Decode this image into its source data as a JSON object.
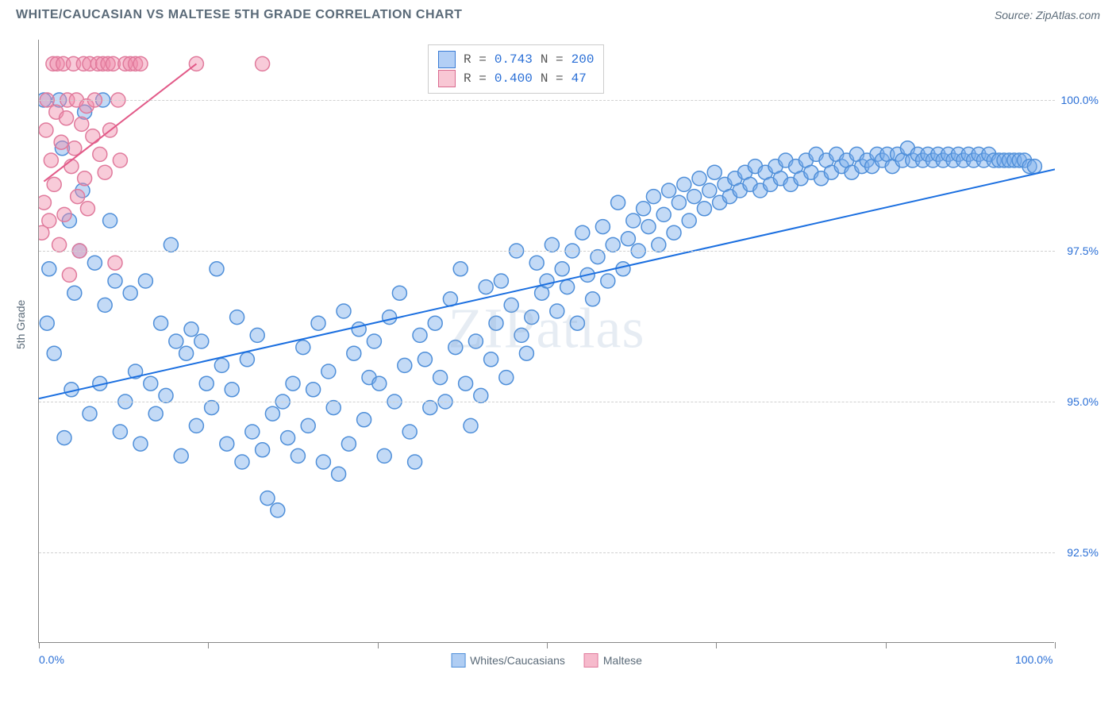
{
  "title": "WHITE/CAUCASIAN VS MALTESE 5TH GRADE CORRELATION CHART",
  "source_label": "Source: ZipAtlas.com",
  "y_axis_label": "5th Grade",
  "watermark": "ZIPatlas",
  "chart": {
    "type": "scatter",
    "xlim": [
      0,
      100
    ],
    "ylim": [
      91.0,
      101.0
    ],
    "gridlines_y": [
      92.5,
      95.0,
      97.5,
      100.0
    ],
    "y_tick_labels": [
      "92.5%",
      "95.0%",
      "97.5%",
      "100.0%"
    ],
    "x_ticks": [
      0,
      16.67,
      33.33,
      50.0,
      66.67,
      83.33,
      100.0
    ],
    "x_tick_labels": {
      "0": "0.0%",
      "100": "100.0%"
    },
    "background_color": "#ffffff",
    "grid_color": "#d0d0d0",
    "axis_color": "#888888",
    "marker_radius": 9,
    "marker_stroke_width": 1.5,
    "trend_line_width": 2,
    "series": [
      {
        "name": "Whites/Caucasians",
        "fill_color": "rgba(122,172,235,0.45)",
        "stroke_color": "#4f8fd9",
        "trend_color": "#1b6fe0",
        "R": "0.743",
        "N": "200",
        "trend": {
          "x1": 0,
          "y1": 95.05,
          "x2": 100,
          "y2": 98.85
        },
        "points": [
          [
            0.5,
            100.0
          ],
          [
            0.8,
            96.3
          ],
          [
            1.0,
            97.2
          ],
          [
            1.5,
            95.8
          ],
          [
            2.0,
            100.0
          ],
          [
            2.3,
            99.2
          ],
          [
            2.5,
            94.4
          ],
          [
            3.0,
            98.0
          ],
          [
            3.2,
            95.2
          ],
          [
            3.5,
            96.8
          ],
          [
            4.0,
            97.5
          ],
          [
            4.3,
            98.5
          ],
          [
            4.5,
            99.8
          ],
          [
            5.0,
            94.8
          ],
          [
            5.5,
            97.3
          ],
          [
            6.0,
            95.3
          ],
          [
            6.3,
            100.0
          ],
          [
            6.5,
            96.6
          ],
          [
            7.0,
            98.0
          ],
          [
            7.5,
            97.0
          ],
          [
            8.0,
            94.5
          ],
          [
            8.5,
            95.0
          ],
          [
            9.0,
            96.8
          ],
          [
            9.5,
            95.5
          ],
          [
            10.0,
            94.3
          ],
          [
            10.5,
            97.0
          ],
          [
            11.0,
            95.3
          ],
          [
            11.5,
            94.8
          ],
          [
            12.0,
            96.3
          ],
          [
            12.5,
            95.1
          ],
          [
            13.0,
            97.6
          ],
          [
            13.5,
            96.0
          ],
          [
            14.0,
            94.1
          ],
          [
            14.5,
            95.8
          ],
          [
            15.0,
            96.2
          ],
          [
            15.5,
            94.6
          ],
          [
            16.0,
            96.0
          ],
          [
            16.5,
            95.3
          ],
          [
            17.0,
            94.9
          ],
          [
            17.5,
            97.2
          ],
          [
            18.0,
            95.6
          ],
          [
            18.5,
            94.3
          ],
          [
            19.0,
            95.2
          ],
          [
            19.5,
            96.4
          ],
          [
            20.0,
            94.0
          ],
          [
            20.5,
            95.7
          ],
          [
            21.0,
            94.5
          ],
          [
            21.5,
            96.1
          ],
          [
            22.0,
            94.2
          ],
          [
            22.5,
            93.4
          ],
          [
            23.0,
            94.8
          ],
          [
            23.5,
            93.2
          ],
          [
            24.0,
            95.0
          ],
          [
            24.5,
            94.4
          ],
          [
            25.0,
            95.3
          ],
          [
            25.5,
            94.1
          ],
          [
            26.0,
            95.9
          ],
          [
            26.5,
            94.6
          ],
          [
            27.0,
            95.2
          ],
          [
            27.5,
            96.3
          ],
          [
            28.0,
            94.0
          ],
          [
            28.5,
            95.5
          ],
          [
            29.0,
            94.9
          ],
          [
            29.5,
            93.8
          ],
          [
            30.0,
            96.5
          ],
          [
            30.5,
            94.3
          ],
          [
            31.0,
            95.8
          ],
          [
            31.5,
            96.2
          ],
          [
            32.0,
            94.7
          ],
          [
            32.5,
            95.4
          ],
          [
            33.0,
            96.0
          ],
          [
            33.5,
            95.3
          ],
          [
            34.0,
            94.1
          ],
          [
            34.5,
            96.4
          ],
          [
            35.0,
            95.0
          ],
          [
            35.5,
            96.8
          ],
          [
            36.0,
            95.6
          ],
          [
            36.5,
            94.5
          ],
          [
            37.0,
            94.0
          ],
          [
            37.5,
            96.1
          ],
          [
            38.0,
            95.7
          ],
          [
            38.5,
            94.9
          ],
          [
            39.0,
            96.3
          ],
          [
            39.5,
            95.4
          ],
          [
            40.0,
            95.0
          ],
          [
            40.5,
            96.7
          ],
          [
            41.0,
            95.9
          ],
          [
            41.5,
            97.2
          ],
          [
            42.0,
            95.3
          ],
          [
            42.5,
            94.6
          ],
          [
            43.0,
            96.0
          ],
          [
            43.5,
            95.1
          ],
          [
            44.0,
            96.9
          ],
          [
            44.5,
            95.7
          ],
          [
            45.0,
            96.3
          ],
          [
            45.5,
            97.0
          ],
          [
            46.0,
            95.4
          ],
          [
            46.5,
            96.6
          ],
          [
            47.0,
            97.5
          ],
          [
            47.5,
            96.1
          ],
          [
            48.0,
            95.8
          ],
          [
            48.5,
            96.4
          ],
          [
            49.0,
            97.3
          ],
          [
            49.5,
            96.8
          ],
          [
            50.0,
            97.0
          ],
          [
            50.5,
            97.6
          ],
          [
            51.0,
            96.5
          ],
          [
            51.5,
            97.2
          ],
          [
            52.0,
            96.9
          ],
          [
            52.5,
            97.5
          ],
          [
            53.0,
            96.3
          ],
          [
            53.5,
            97.8
          ],
          [
            54.0,
            97.1
          ],
          [
            54.5,
            96.7
          ],
          [
            55.0,
            97.4
          ],
          [
            55.5,
            97.9
          ],
          [
            56.0,
            97.0
          ],
          [
            56.5,
            97.6
          ],
          [
            57.0,
            98.3
          ],
          [
            57.5,
            97.2
          ],
          [
            58.0,
            97.7
          ],
          [
            58.5,
            98.0
          ],
          [
            59.0,
            97.5
          ],
          [
            59.5,
            98.2
          ],
          [
            60.0,
            97.9
          ],
          [
            60.5,
            98.4
          ],
          [
            61.0,
            97.6
          ],
          [
            61.5,
            98.1
          ],
          [
            62.0,
            98.5
          ],
          [
            62.5,
            97.8
          ],
          [
            63.0,
            98.3
          ],
          [
            63.5,
            98.6
          ],
          [
            64.0,
            98.0
          ],
          [
            64.5,
            98.4
          ],
          [
            65.0,
            98.7
          ],
          [
            65.5,
            98.2
          ],
          [
            66.0,
            98.5
          ],
          [
            66.5,
            98.8
          ],
          [
            67.0,
            98.3
          ],
          [
            67.5,
            98.6
          ],
          [
            68.0,
            98.4
          ],
          [
            68.5,
            98.7
          ],
          [
            69.0,
            98.5
          ],
          [
            69.5,
            98.8
          ],
          [
            70.0,
            98.6
          ],
          [
            70.5,
            98.9
          ],
          [
            71.0,
            98.5
          ],
          [
            71.5,
            98.8
          ],
          [
            72.0,
            98.6
          ],
          [
            72.5,
            98.9
          ],
          [
            73.0,
            98.7
          ],
          [
            73.5,
            99.0
          ],
          [
            74.0,
            98.6
          ],
          [
            74.5,
            98.9
          ],
          [
            75.0,
            98.7
          ],
          [
            75.5,
            99.0
          ],
          [
            76.0,
            98.8
          ],
          [
            76.5,
            99.1
          ],
          [
            77.0,
            98.7
          ],
          [
            77.5,
            99.0
          ],
          [
            78.0,
            98.8
          ],
          [
            78.5,
            99.1
          ],
          [
            79.0,
            98.9
          ],
          [
            79.5,
            99.0
          ],
          [
            80.0,
            98.8
          ],
          [
            80.5,
            99.1
          ],
          [
            81.0,
            98.9
          ],
          [
            81.5,
            99.0
          ],
          [
            82.0,
            98.9
          ],
          [
            82.5,
            99.1
          ],
          [
            83.0,
            99.0
          ],
          [
            83.5,
            99.1
          ],
          [
            84.0,
            98.9
          ],
          [
            84.5,
            99.1
          ],
          [
            85.0,
            99.0
          ],
          [
            85.5,
            99.2
          ],
          [
            86.0,
            99.0
          ],
          [
            86.5,
            99.1
          ],
          [
            87.0,
            99.0
          ],
          [
            87.5,
            99.1
          ],
          [
            88.0,
            99.0
          ],
          [
            88.5,
            99.1
          ],
          [
            89.0,
            99.0
          ],
          [
            89.5,
            99.1
          ],
          [
            90.0,
            99.0
          ],
          [
            90.5,
            99.1
          ],
          [
            91.0,
            99.0
          ],
          [
            91.5,
            99.1
          ],
          [
            92.0,
            99.0
          ],
          [
            92.5,
            99.1
          ],
          [
            93.0,
            99.0
          ],
          [
            93.5,
            99.1
          ],
          [
            94.0,
            99.0
          ],
          [
            94.5,
            99.0
          ],
          [
            95.0,
            99.0
          ],
          [
            95.5,
            99.0
          ],
          [
            96.0,
            99.0
          ],
          [
            96.5,
            99.0
          ],
          [
            97.0,
            99.0
          ],
          [
            97.5,
            98.9
          ],
          [
            98.0,
            98.9
          ]
        ]
      },
      {
        "name": "Maltese",
        "fill_color": "rgba(240,140,170,0.45)",
        "stroke_color": "#e07a9c",
        "trend_color": "#e25a88",
        "R": "0.400",
        "N": "47",
        "trend": {
          "x1": 0.5,
          "y1": 98.65,
          "x2": 15.5,
          "y2": 100.6
        },
        "points": [
          [
            0.3,
            97.8
          ],
          [
            0.5,
            98.3
          ],
          [
            0.7,
            99.5
          ],
          [
            0.8,
            100.0
          ],
          [
            1.0,
            98.0
          ],
          [
            1.2,
            99.0
          ],
          [
            1.4,
            100.6
          ],
          [
            1.5,
            98.6
          ],
          [
            1.7,
            99.8
          ],
          [
            1.8,
            100.6
          ],
          [
            2.0,
            97.6
          ],
          [
            2.2,
            99.3
          ],
          [
            2.4,
            100.6
          ],
          [
            2.5,
            98.1
          ],
          [
            2.7,
            99.7
          ],
          [
            2.8,
            100.0
          ],
          [
            3.0,
            97.1
          ],
          [
            3.2,
            98.9
          ],
          [
            3.4,
            100.6
          ],
          [
            3.5,
            99.2
          ],
          [
            3.7,
            100.0
          ],
          [
            3.8,
            98.4
          ],
          [
            4.0,
            97.5
          ],
          [
            4.2,
            99.6
          ],
          [
            4.4,
            100.6
          ],
          [
            4.5,
            98.7
          ],
          [
            4.7,
            99.9
          ],
          [
            4.8,
            98.2
          ],
          [
            5.0,
            100.6
          ],
          [
            5.3,
            99.4
          ],
          [
            5.5,
            100.0
          ],
          [
            5.8,
            100.6
          ],
          [
            6.0,
            99.1
          ],
          [
            6.3,
            100.6
          ],
          [
            6.5,
            98.8
          ],
          [
            6.8,
            100.6
          ],
          [
            7.0,
            99.5
          ],
          [
            7.3,
            100.6
          ],
          [
            7.5,
            97.3
          ],
          [
            7.8,
            100.0
          ],
          [
            8.0,
            99.0
          ],
          [
            8.5,
            100.6
          ],
          [
            9.0,
            100.6
          ],
          [
            9.5,
            100.6
          ],
          [
            10.0,
            100.6
          ],
          [
            15.5,
            100.6
          ],
          [
            22.0,
            100.6
          ]
        ]
      }
    ]
  },
  "legend_bottom": [
    {
      "label": "Whites/Caucasians",
      "fill": "rgba(122,172,235,0.6)",
      "stroke": "#4f8fd9"
    },
    {
      "label": "Maltese",
      "fill": "rgba(240,140,170,0.6)",
      "stroke": "#e07a9c"
    }
  ],
  "stats_box": {
    "rows": [
      {
        "swatch": "blue",
        "r_label": "R =",
        "r_val": "0.743",
        "n_label": "N =",
        "n_val": "200"
      },
      {
        "swatch": "pink",
        "r_label": "R =",
        "r_val": "0.400",
        "n_label": "N =",
        "n_val": " 47"
      }
    ]
  }
}
